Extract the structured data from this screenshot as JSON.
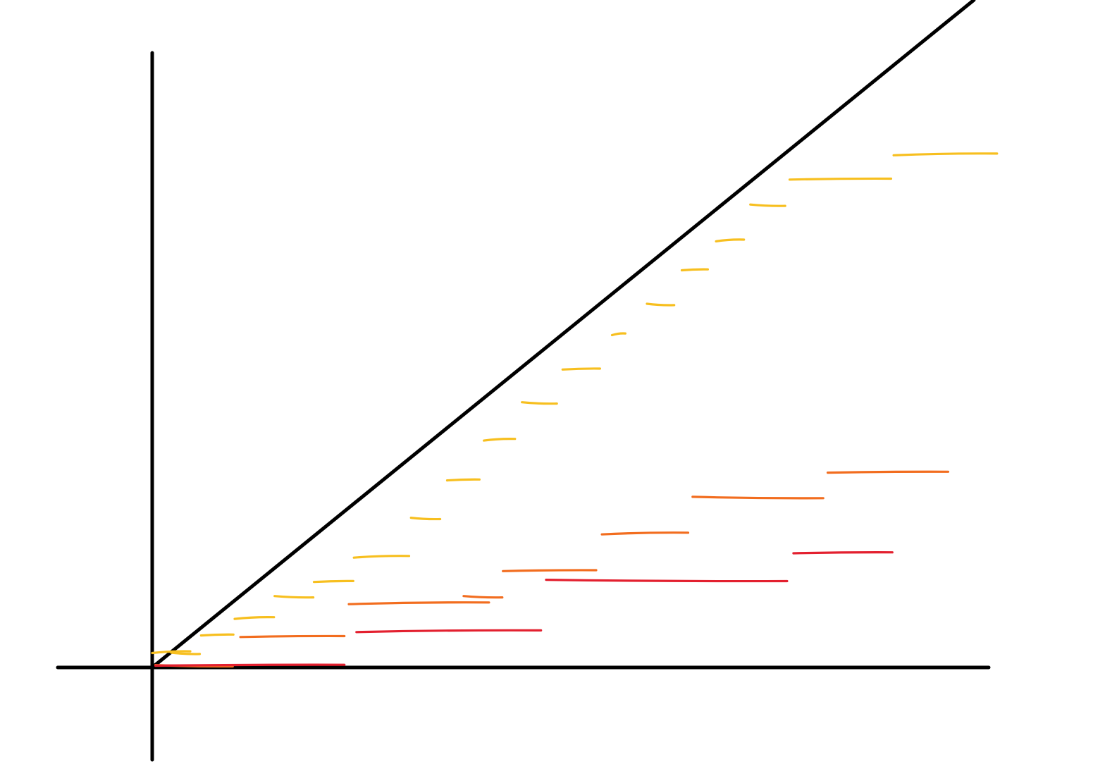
{
  "colors": {
    "background": "#ffffff",
    "axes": "#000000",
    "diagonal": "#000000",
    "yellow_series": "#f7bf1f",
    "orange_series": "#f26d1f",
    "red_series": "#e3202f"
  },
  "chart_data": {
    "type": "line",
    "description_kind": "hand-drawn staircase sketch",
    "axes": {
      "x_label": "",
      "y_label": "",
      "ticks": false,
      "grid": false
    },
    "diagonal": {
      "present": true,
      "slope": 0.807
    },
    "series": [
      {
        "color_key": "yellow_series",
        "style": "step",
        "steps": [
          {
            "x0": 0,
            "x1": 6,
            "y": 2
          },
          {
            "x0": 3,
            "x1": 7.5,
            "y": 1.8
          },
          {
            "x0": 7.7,
            "x1": 12.8,
            "y": 4.2
          },
          {
            "x0": 13,
            "x1": 19.2,
            "y": 6.4
          },
          {
            "x0": 19.3,
            "x1": 25.4,
            "y": 9.1
          },
          {
            "x0": 25.5,
            "x1": 31.7,
            "y": 11.1
          },
          {
            "x0": 31.8,
            "x1": 40.5,
            "y": 14.3
          },
          {
            "x0": 40.8,
            "x1": 45.4,
            "y": 19.2
          },
          {
            "x0": 46.5,
            "x1": 51.6,
            "y": 24.2
          },
          {
            "x0": 52.3,
            "x1": 57.2,
            "y": 29.4
          },
          {
            "x0": 58.3,
            "x1": 63.8,
            "y": 34.1
          },
          {
            "x0": 64.7,
            "x1": 70.6,
            "y": 38.5
          },
          {
            "x0": 72.5,
            "x1": 74.6,
            "y": 43.0
          },
          {
            "x0": 78,
            "x1": 82.3,
            "y": 46.8
          },
          {
            "x0": 83.5,
            "x1": 87.6,
            "y": 51.3
          },
          {
            "x0": 88.9,
            "x1": 93.3,
            "y": 55.1
          },
          {
            "x0": 94.3,
            "x1": 99.8,
            "y": 59.6
          },
          {
            "x0": 100.5,
            "x1": 116.5,
            "y": 63.0
          },
          {
            "x0": 116.9,
            "x1": 133.2,
            "y": 66.2
          }
        ]
      },
      {
        "color_key": "orange_series",
        "style": "step",
        "steps": [
          {
            "x0": 0.5,
            "x1": 12.7,
            "y": 0.2
          },
          {
            "x0": 13.9,
            "x1": 30.3,
            "y": 4.0
          },
          {
            "x0": 31,
            "x1": 53.1,
            "y": 8.3
          },
          {
            "x0": 49.1,
            "x1": 55.2,
            "y": 9.1
          },
          {
            "x0": 55.3,
            "x1": 70.0,
            "y": 12.5
          },
          {
            "x0": 70.9,
            "x1": 84.5,
            "y": 17.3
          },
          {
            "x0": 85.2,
            "x1": 105.8,
            "y": 21.9
          },
          {
            "x0": 106.5,
            "x1": 125.5,
            "y": 25.2
          }
        ]
      },
      {
        "color_key": "red_series",
        "style": "step",
        "steps": [
          {
            "x0": 0.5,
            "x1": 30.3,
            "y": 0.3
          },
          {
            "x0": 32.2,
            "x1": 61.3,
            "y": 4.7
          },
          {
            "x0": 62.1,
            "x1": 100.1,
            "y": 11.2
          },
          {
            "x0": 101.1,
            "x1": 116.7,
            "y": 14.8
          }
        ]
      }
    ]
  }
}
